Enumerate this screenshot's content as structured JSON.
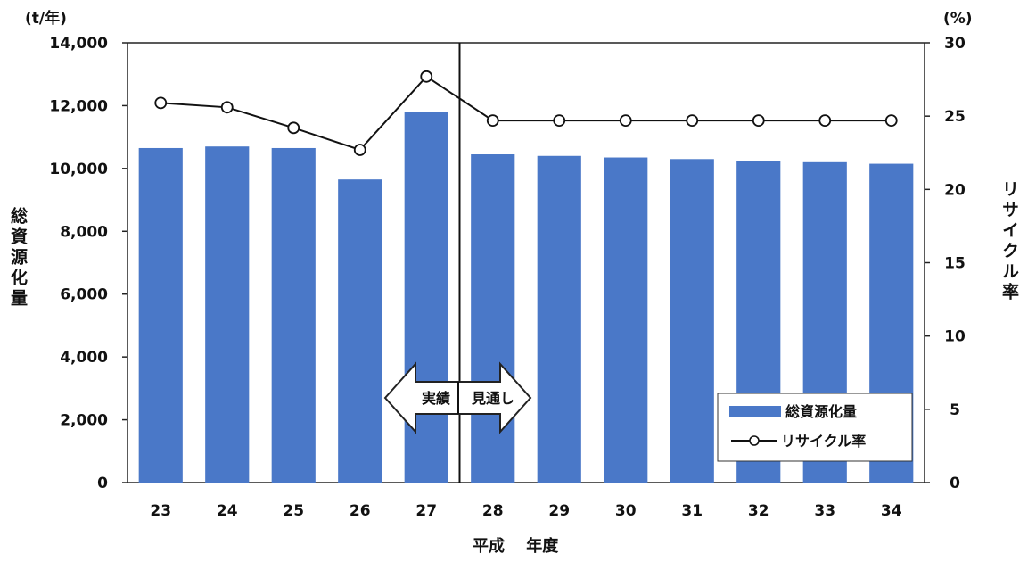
{
  "chart_data": {
    "type": "bar",
    "categories": [
      "23",
      "24",
      "25",
      "26",
      "27",
      "28",
      "29",
      "30",
      "31",
      "32",
      "33",
      "34"
    ],
    "series": [
      {
        "name": "総資源化量",
        "type": "bar",
        "axis": "left",
        "color": "#4a78c8",
        "values": [
          10650,
          10700,
          10650,
          9650,
          11800,
          10450,
          10400,
          10350,
          10300,
          10250,
          10200,
          10150
        ]
      },
      {
        "name": "リサイクル率",
        "type": "line",
        "axis": "right",
        "color": "#111111",
        "marker": "open-circle",
        "values": [
          25.9,
          25.6,
          24.2,
          22.7,
          27.7,
          24.7,
          24.7,
          24.7,
          24.7,
          24.7,
          24.7,
          24.7
        ]
      }
    ],
    "xlabel": "平成　 年度",
    "ylabel_left": "総資源化量",
    "ylabel_right": "リサイクル率",
    "unit_left": "(t/年)",
    "unit_right": "(%)",
    "ylim_left": [
      0,
      14000
    ],
    "ylim_right": [
      0,
      30
    ],
    "yticks_left": [
      "0",
      "2,000",
      "4,000",
      "6,000",
      "8,000",
      "10,000",
      "12,000",
      "14,000"
    ],
    "yticks_right": [
      "0",
      "5",
      "10",
      "15",
      "20",
      "25",
      "30"
    ],
    "grid": false,
    "legend_position": "bottom-right",
    "divider_after_category": "27",
    "annotation": {
      "left": "実績",
      "right": "見通し"
    }
  }
}
